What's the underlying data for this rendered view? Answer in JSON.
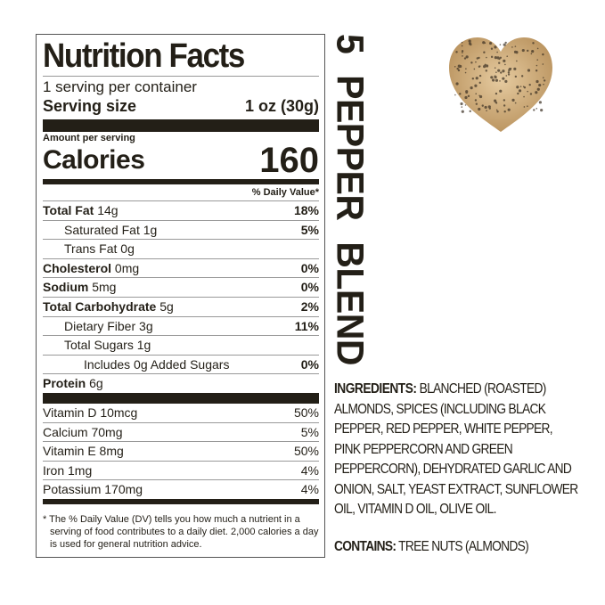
{
  "label": {
    "title": "Nutrition Facts",
    "servings": "1 serving per container",
    "serving_size_label": "Serving size",
    "serving_size_value": "1 oz (30g)",
    "amount_per_serving": "Amount per serving",
    "calories_label": "Calories",
    "calories_value": "160",
    "dv_header": "% Daily Value*",
    "nutrients": [
      {
        "name": "Total Fat",
        "amount": "14g",
        "dv": "18%",
        "bold": true,
        "indent": 0
      },
      {
        "name": "Saturated Fat",
        "amount": "1g",
        "dv": "5%",
        "bold": false,
        "indent": 1
      },
      {
        "name": "Trans Fat",
        "amount": "0g",
        "dv": "",
        "bold": false,
        "indent": 1
      },
      {
        "name": "Cholesterol",
        "amount": "0mg",
        "dv": "0%",
        "bold": true,
        "indent": 0
      },
      {
        "name": "Sodium",
        "amount": "5mg",
        "dv": "0%",
        "bold": true,
        "indent": 0
      },
      {
        "name": "Total Carbohydrate",
        "amount": "5g",
        "dv": "2%",
        "bold": true,
        "indent": 0
      },
      {
        "name": "Dietary Fiber",
        "amount": "3g",
        "dv": "11%",
        "bold": false,
        "indent": 1
      },
      {
        "name": "Total Sugars",
        "amount": "1g",
        "dv": "",
        "bold": false,
        "indent": 1
      },
      {
        "name": "Includes 0g Added Sugars",
        "amount": "",
        "dv": "0%",
        "bold": false,
        "indent": 2
      },
      {
        "name": "Protein",
        "amount": "6g",
        "dv": "",
        "bold": true,
        "indent": 0
      }
    ],
    "vitamins": [
      {
        "name": "Vitamin D 10mcg",
        "dv": "50%"
      },
      {
        "name": "Calcium 70mg",
        "dv": "5%"
      },
      {
        "name": "Vitamin E 8mg",
        "dv": "50%"
      },
      {
        "name": "Iron 1mg",
        "dv": "4%"
      },
      {
        "name": "Potassium 170mg",
        "dv": "4%"
      }
    ],
    "footnote": "* The % Daily Value (DV) tells you how much a nutrient in a serving of food contributes to a daily diet. 2,000 calories a day is used for general nutrition advice."
  },
  "flavor": "5 PEPPER BLEND",
  "ingredients": {
    "label": "INGREDIENTS:",
    "text": "BLANCHED (ROASTED) ALMONDS, SPICES (INCLUDING BLACK PEPPER, RED PEPPER, WHITE PEPPER, PINK PEPPERCORN AND GREEN PEPPERCORN), DEHYDRATED GARLIC AND ONION, SALT,  YEAST EXTRACT, SUNFLOWER OIL, VITAMIN D OIL, OLIVE OIL."
  },
  "contains": {
    "label": "CONTAINS:",
    "text": "TREE NUTS (ALMONDS)"
  },
  "colors": {
    "text": "#231f17",
    "almond": "#d9b98a"
  }
}
